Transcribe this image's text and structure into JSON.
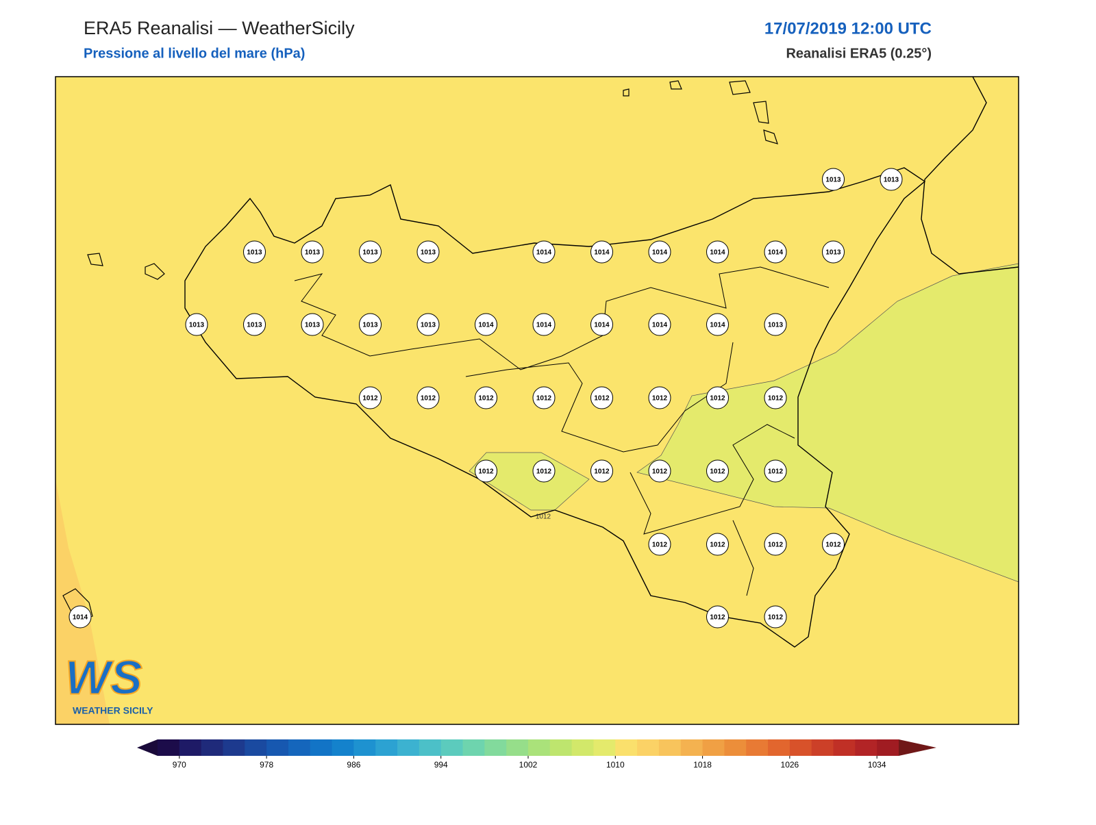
{
  "header": {
    "title": "ERA5 Reanalisi — WeatherSicily",
    "subtitle": "Pressione al livello del mare (hPa)",
    "date": "17/07/2019 12:00 UTC",
    "source": "Reanalisi ERA5 (0.25°)"
  },
  "stations": [
    {
      "value": 1013
    },
    {
      "value": 1013
    },
    {
      "value": 1013
    },
    {
      "value": 1013
    },
    {
      "value": 1013
    },
    {
      "value": 1013
    },
    {
      "value": 1014
    },
    {
      "value": 1014
    },
    {
      "value": 1014
    },
    {
      "value": 1014
    },
    {
      "value": 1014
    },
    {
      "value": 1013
    },
    {
      "value": 1013
    },
    {
      "value": 1013
    },
    {
      "value": 1013
    },
    {
      "value": 1013
    },
    {
      "value": 1013
    },
    {
      "value": 1014
    },
    {
      "value": 1014
    },
    {
      "value": 1014
    },
    {
      "value": 1014
    },
    {
      "value": 1014
    },
    {
      "value": 1013
    },
    {
      "value": 1012
    },
    {
      "value": 1012
    },
    {
      "value": 1012
    },
    {
      "value": 1012
    },
    {
      "value": 1012
    },
    {
      "value": 1012
    },
    {
      "value": 1012
    },
    {
      "value": 1012
    },
    {
      "value": 1012
    },
    {
      "value": 1012
    },
    {
      "value": 1012
    },
    {
      "value": 1012
    },
    {
      "value": 1012
    },
    {
      "value": 1012
    },
    {
      "value": 1012
    },
    {
      "value": 1012
    },
    {
      "value": 1012
    },
    {
      "value": 1012
    },
    {
      "value": 1014
    },
    {
      "value": 1012
    },
    {
      "value": 1012
    }
  ],
  "contour_labels": [
    {
      "value": 1012
    }
  ],
  "colorbar": {
    "lim": [
      968,
      1036
    ],
    "ticks": [
      970,
      978,
      986,
      994,
      1002,
      1010,
      1018,
      1026,
      1034
    ],
    "colors": [
      "#1c0c4a",
      "#1e1a66",
      "#1f2a7a",
      "#1d3a8e",
      "#1a4aa0",
      "#1758b0",
      "#1566bc",
      "#1274c6",
      "#1482cc",
      "#1e92d0",
      "#2ca2d2",
      "#3cb2d0",
      "#4cc0c8",
      "#5ccbbd",
      "#6ed4ae",
      "#82da9c",
      "#96de8a",
      "#aae27a",
      "#bee56e",
      "#d2e86a",
      "#e4ea6c",
      "#fae06c",
      "#fbd266",
      "#f8c45c",
      "#f4b250",
      "#f0a044",
      "#ec8e3a",
      "#e87a34",
      "#e2662e",
      "#d8522a",
      "#cc4028",
      "#c03026",
      "#b22426",
      "#a01c22"
    ],
    "extend_low": "#1a0a3a",
    "extend_high": "#701818"
  },
  "logo": {
    "text": "WS",
    "subtitle": "WEATHER SICILY"
  }
}
